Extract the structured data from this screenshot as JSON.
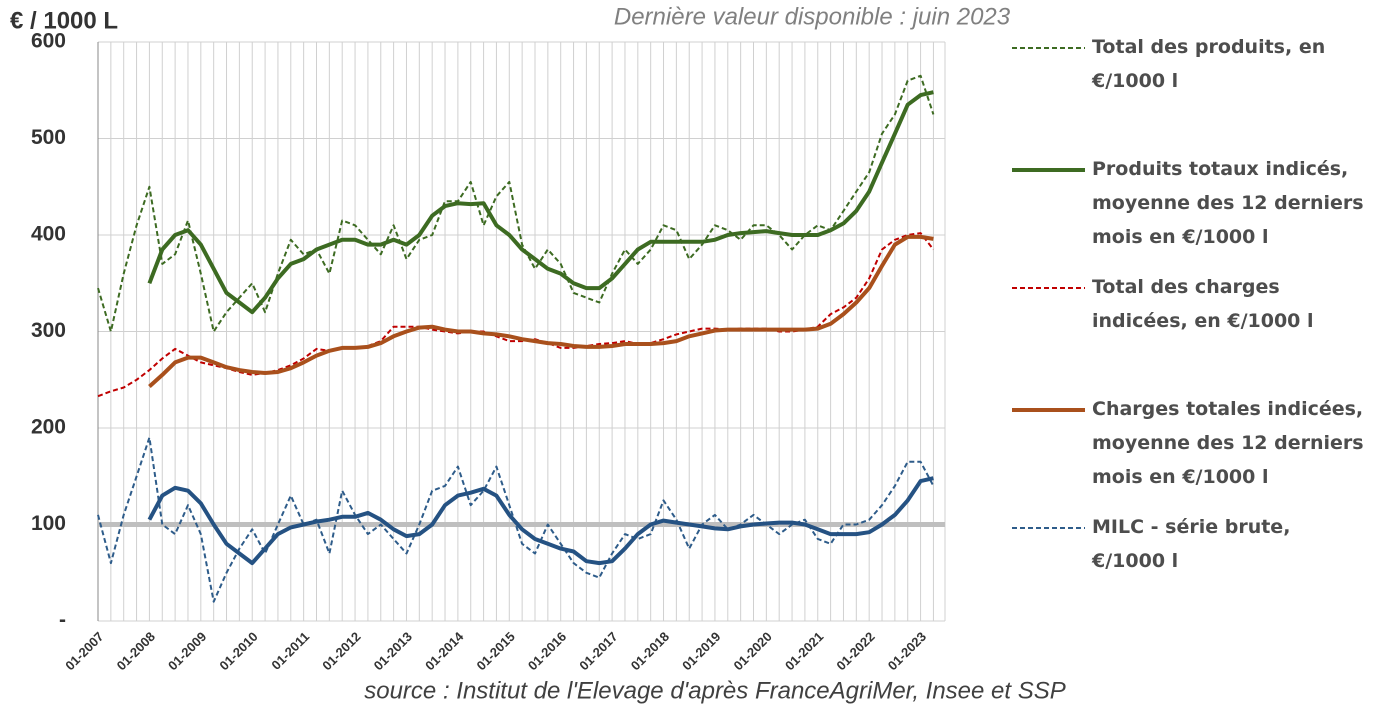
{
  "chart_data": {
    "type": "line",
    "y_label": "€ / 1000 L",
    "subtitle": "Dernière valeur disponible : juin 2023",
    "source": "source : Institut de l'Elevage d'après FranceAgriMer, Insee et SSP",
    "categories": [
      "01-2007",
      null,
      null,
      null,
      "01-2008",
      null,
      null,
      null,
      "01-2009",
      null,
      null,
      null,
      "01-2010",
      null,
      null,
      null,
      "01-2011",
      null,
      null,
      null,
      "01-2012",
      null,
      null,
      null,
      "01-2013",
      null,
      null,
      null,
      "01-2014",
      null,
      null,
      null,
      "01-2015",
      null,
      null,
      null,
      "01-2016",
      null,
      null,
      null,
      "01-2017",
      null,
      null,
      null,
      "01-2018",
      null,
      null,
      null,
      "01-2019",
      null,
      null,
      null,
      "01-2020",
      null,
      null,
      null,
      "01-2021",
      null,
      null,
      null,
      "01-2022",
      null,
      null,
      null,
      "01-2023",
      null
    ],
    "ylim": [
      0,
      600
    ],
    "yticks": [
      {
        "value": 0,
        "label": "-"
      },
      100,
      200,
      300,
      400,
      500,
      600
    ],
    "grid": true,
    "reference_line": {
      "value": 100,
      "color": "#bfbfbf"
    },
    "series": [
      {
        "name": "Total des produits, en €/1000 l",
        "color": "#3d6b22",
        "line_style": "dashed",
        "line_width": 2,
        "values": [
          345,
          300,
          360,
          410,
          450,
          370,
          380,
          415,
          360,
          300,
          320,
          335,
          350,
          320,
          360,
          395,
          380,
          385,
          360,
          415,
          410,
          395,
          380,
          410,
          375,
          395,
          400,
          435,
          435,
          455,
          410,
          440,
          455,
          390,
          365,
          385,
          370,
          340,
          335,
          330,
          360,
          385,
          370,
          385,
          410,
          405,
          375,
          390,
          410,
          405,
          395,
          410,
          410,
          400,
          385,
          400,
          410,
          405,
          425,
          445,
          465,
          505,
          525,
          560,
          565,
          525
        ]
      },
      {
        "name": "Produits totaux indicés, moyenne des 12 derniers mois en €/1000 l",
        "color": "#3d6b22",
        "line_style": "solid",
        "line_width": 4,
        "values": [
          null,
          null,
          null,
          null,
          350,
          385,
          400,
          405,
          390,
          365,
          340,
          330,
          320,
          335,
          355,
          370,
          375,
          385,
          390,
          395,
          395,
          390,
          390,
          395,
          390,
          400,
          420,
          430,
          433,
          432,
          433,
          410,
          400,
          385,
          375,
          365,
          360,
          350,
          345,
          345,
          355,
          370,
          385,
          393,
          393,
          393,
          393,
          393,
          395,
          400,
          402,
          403,
          404,
          402,
          400,
          400,
          400,
          405,
          412,
          425,
          445,
          475,
          505,
          535,
          545,
          548
        ]
      },
      {
        "name": "Total des charges indicées, en €/1000 l",
        "color": "#c00000",
        "line_style": "dashed",
        "line_width": 2,
        "values": [
          233,
          238,
          242,
          250,
          260,
          272,
          282,
          275,
          268,
          265,
          262,
          258,
          255,
          257,
          260,
          265,
          272,
          282,
          280,
          283,
          283,
          285,
          290,
          305,
          305,
          305,
          302,
          300,
          298,
          300,
          300,
          295,
          290,
          290,
          292,
          288,
          283,
          283,
          285,
          287,
          288,
          290,
          287,
          288,
          292,
          297,
          300,
          303,
          303,
          302,
          303,
          303,
          303,
          300,
          300,
          302,
          305,
          318,
          325,
          335,
          355,
          385,
          395,
          400,
          402,
          385
        ]
      },
      {
        "name": "Charges totales indicées, moyenne des 12 derniers mois en €/1000 l",
        "color": "#a9501c",
        "line_style": "solid",
        "line_width": 4,
        "values": [
          null,
          null,
          null,
          null,
          243,
          255,
          268,
          273,
          273,
          268,
          263,
          260,
          258,
          257,
          258,
          262,
          268,
          275,
          280,
          283,
          283,
          284,
          288,
          295,
          300,
          304,
          305,
          302,
          300,
          300,
          298,
          297,
          295,
          292,
          290,
          288,
          287,
          285,
          284,
          284,
          285,
          287,
          287,
          287,
          288,
          290,
          295,
          298,
          301,
          302,
          302,
          302,
          302,
          302,
          302,
          302,
          303,
          308,
          318,
          330,
          345,
          368,
          390,
          398,
          398,
          396
        ]
      },
      {
        "name": "MILC - série brute, €/1000 l",
        "color": "#2e5c8a",
        "line_style": "dashed",
        "line_width": 2,
        "values": [
          110,
          60,
          110,
          150,
          190,
          100,
          90,
          120,
          90,
          20,
          50,
          75,
          95,
          70,
          100,
          130,
          100,
          105,
          70,
          135,
          110,
          90,
          100,
          85,
          70,
          100,
          135,
          140,
          160,
          120,
          135,
          160,
          120,
          80,
          70,
          100,
          80,
          60,
          50,
          45,
          70,
          90,
          85,
          90,
          125,
          105,
          75,
          100,
          110,
          95,
          100,
          110,
          100,
          90,
          100,
          105,
          85,
          80,
          100,
          100,
          105,
          120,
          140,
          165,
          165,
          140
        ]
      },
      {
        "color": "#255283",
        "line_style": "solid",
        "line_width": 4,
        "values": [
          null,
          null,
          null,
          null,
          105,
          130,
          138,
          135,
          122,
          100,
          80,
          70,
          60,
          75,
          90,
          97,
          100,
          103,
          105,
          108,
          108,
          112,
          105,
          95,
          88,
          90,
          100,
          120,
          130,
          133,
          137,
          130,
          110,
          95,
          85,
          80,
          75,
          72,
          62,
          60,
          62,
          75,
          90,
          100,
          104,
          102,
          100,
          98,
          96,
          95,
          98,
          100,
          101,
          102,
          102,
          100,
          95,
          90,
          90,
          90,
          92,
          100,
          110,
          125,
          145,
          148
        ]
      }
    ]
  }
}
